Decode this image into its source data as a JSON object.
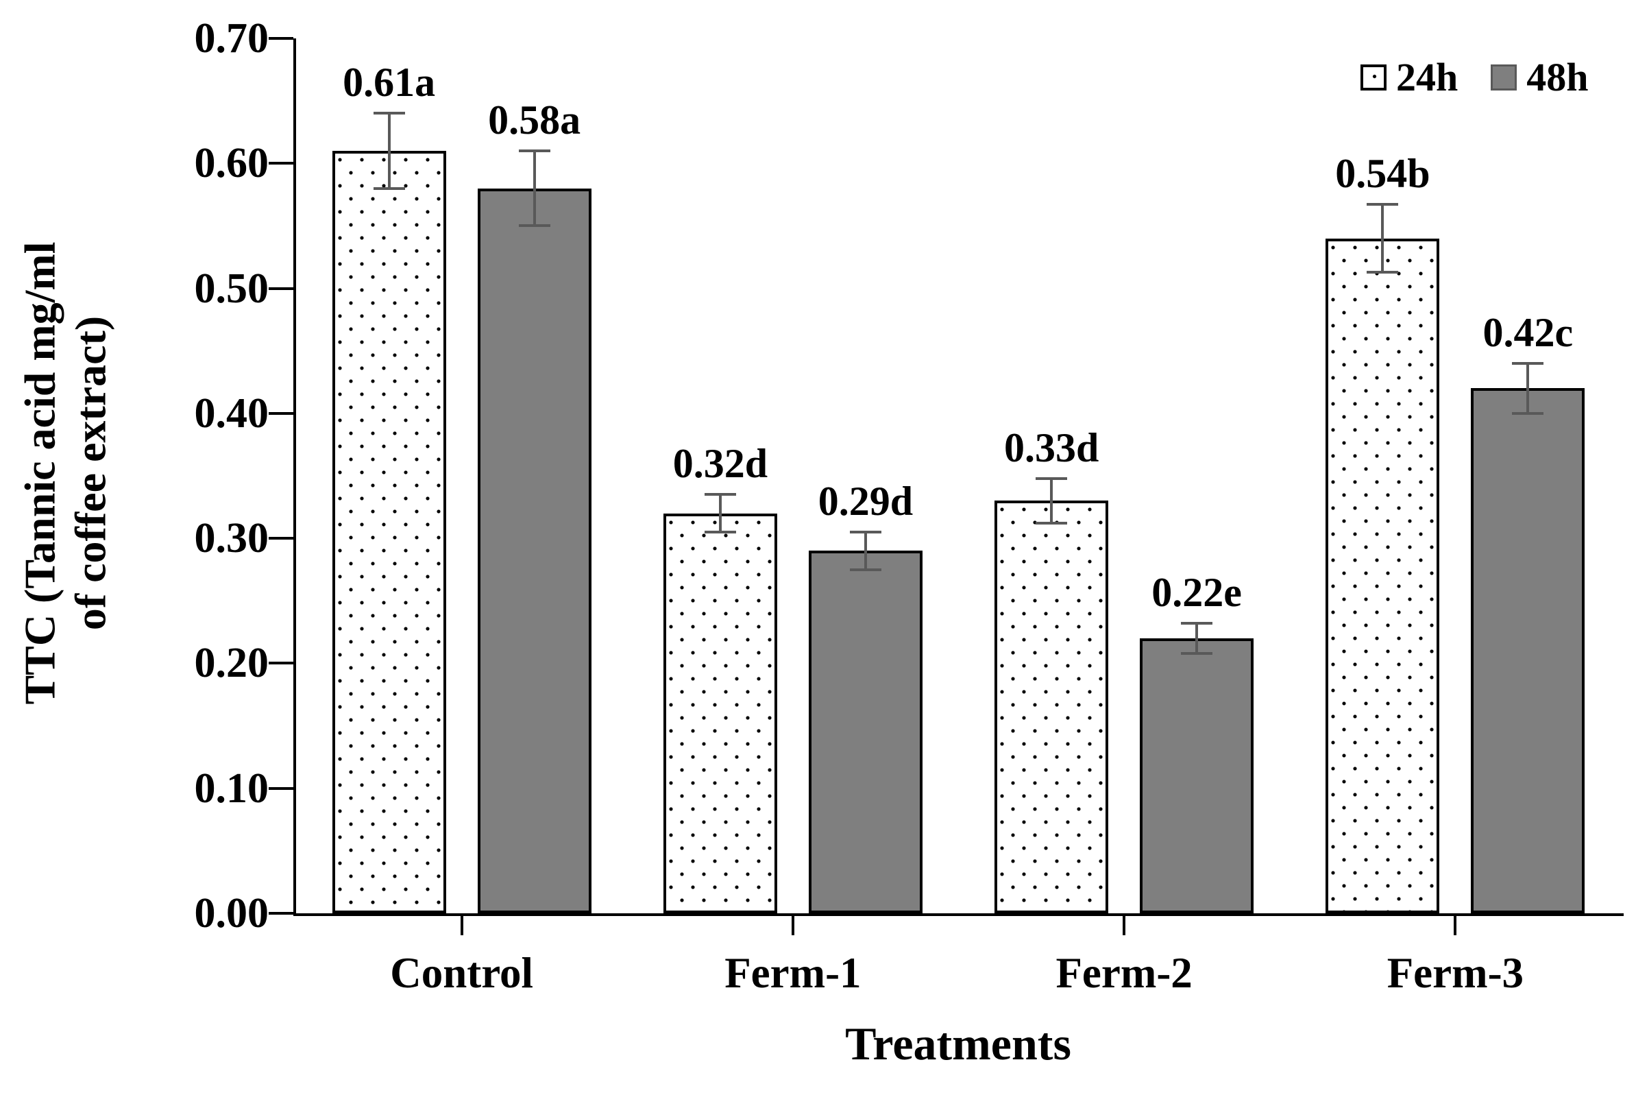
{
  "chart_data": {
    "type": "bar",
    "title": "",
    "xlabel": "Treatments",
    "ylabel": "TTC (Tannic acid mg/ml of coffee extract)",
    "ylabel_line1": "TTC (Tannic acid mg/ml",
    "ylabel_line2": "of coffee extract)",
    "categories": [
      "Control",
      "Ferm-1",
      "Ferm-2",
      "Ferm-3"
    ],
    "series": [
      {
        "name": "24h",
        "fill": "white-dotted-pattern",
        "values": [
          0.61,
          0.32,
          0.33,
          0.54
        ],
        "errors": [
          0.03,
          0.015,
          0.018,
          0.027
        ],
        "data_labels": [
          "0.61a",
          "0.32d",
          "0.33d",
          "0.54b"
        ]
      },
      {
        "name": "48h",
        "fill": "solid-gray",
        "values": [
          0.58,
          0.29,
          0.22,
          0.42
        ],
        "errors": [
          0.03,
          0.015,
          0.012,
          0.02
        ],
        "data_labels": [
          "0.58a",
          "0.29d",
          "0.22e",
          "0.42c"
        ]
      }
    ],
    "ylim": [
      0,
      0.7
    ],
    "ytick_step": 0.1,
    "ytick_labels": [
      "0.00",
      "0.10",
      "0.20",
      "0.30",
      "0.40",
      "0.50",
      "0.60",
      "0.70"
    ],
    "grid": false,
    "legend": {
      "position": "top-right",
      "entries": [
        "24h",
        "48h"
      ]
    },
    "colors": {
      "bar_fill_48h": "#7f7f7f",
      "bar_border": "#000000",
      "error_bar": "#595959",
      "text": "#000000",
      "background": "#ffffff"
    }
  }
}
